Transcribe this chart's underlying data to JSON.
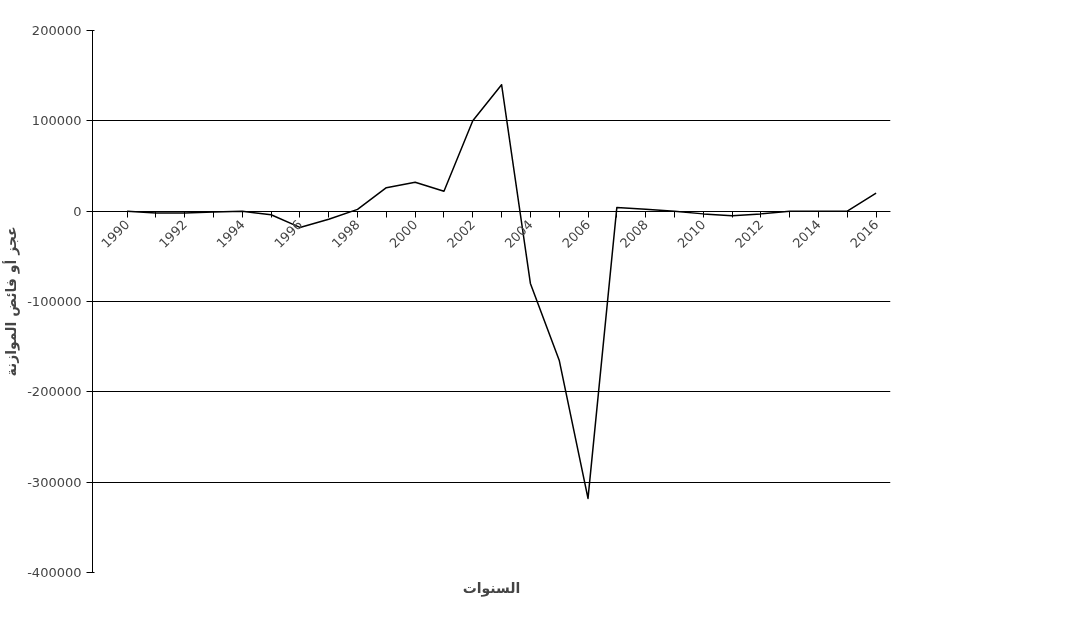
{
  "chart_data": {
    "type": "line",
    "xlabel": "السنوات",
    "ylabel": "عجز أو فائض الموازنة",
    "categories": [
      "1990",
      null,
      "1992",
      null,
      "1994",
      null,
      "1996",
      null,
      "1998",
      null,
      "2000",
      null,
      "2002",
      null,
      "2004",
      null,
      "2006",
      null,
      "2008",
      null,
      "2010",
      null,
      "2012",
      null,
      "2014",
      null,
      "2016"
    ],
    "series": [
      {
        "color": "#000000",
        "values": [
          0,
          -2000,
          -2000,
          -1000,
          0,
          -4000,
          -18000,
          -9000,
          2000,
          26000,
          32000,
          22000,
          100000,
          140000,
          -80000,
          -165000,
          -318000,
          4000,
          2000,
          0,
          -3000,
          -5000,
          -3000,
          0,
          0,
          0,
          20000
        ]
      }
    ],
    "ylim": [
      -400000,
      200000
    ],
    "yticks": [
      -400000,
      -300000,
      -200000,
      -100000,
      0,
      100000,
      200000
    ],
    "grid": "y",
    "marker": "none",
    "line_style": "solid"
  }
}
